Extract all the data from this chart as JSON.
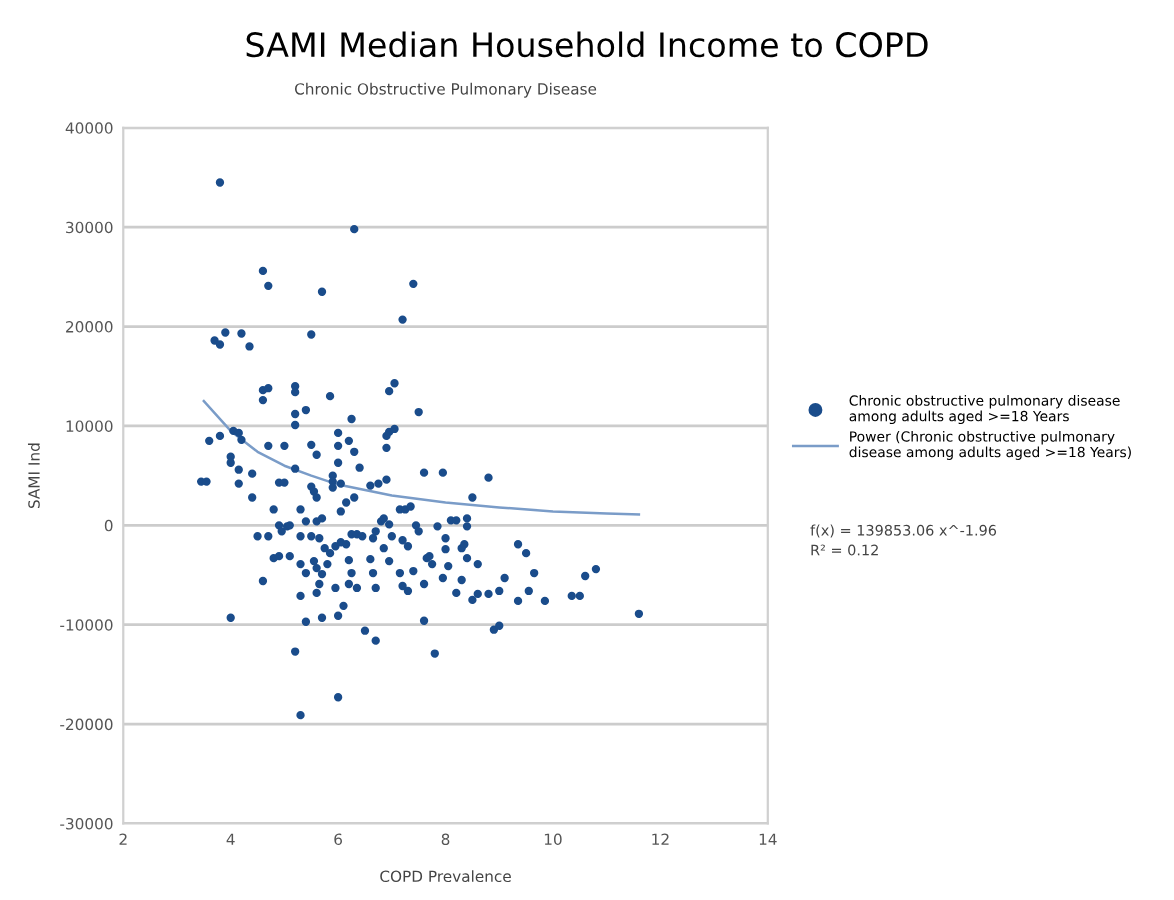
{
  "chart_data": {
    "type": "scatter",
    "title": "SAMI Median Household Income to COPD",
    "subtitle": "Chronic Obstructive Pulmonary Disease",
    "xlabel": "COPD Prevalence",
    "ylabel": "SAMI Ind",
    "xlim": [
      2,
      14
    ],
    "xticks": [
      2,
      4,
      6,
      8,
      10,
      12,
      14
    ],
    "ylim": [
      -30000,
      40000
    ],
    "yticks": [
      -30000,
      -20000,
      -10000,
      0,
      10000,
      20000,
      30000,
      40000
    ],
    "grid": "y",
    "legend": "right",
    "marker": "circle",
    "annotations": [
      "f(x) = 139853.06 x^-1.96",
      "R² = 0.12"
    ],
    "series": [
      {
        "name": "Chronic obstructive pulmonary disease among adults aged >=18 Years",
        "color": "#1a4c8b",
        "x": [
          3.8,
          6.3,
          4.6,
          4.7,
          5.7,
          7.4,
          7.2,
          5.5,
          3.7,
          3.8,
          3.9,
          4.2,
          4.35,
          4.6,
          4.6,
          4.7,
          5.2,
          5.2,
          5.85,
          6.95,
          7.05,
          5.2,
          5.4,
          5.2,
          6.25,
          7.5,
          4.05,
          4.15,
          4.2,
          3.8,
          3.6,
          6.0,
          6.95,
          7.05,
          6.9,
          6.2,
          4.7,
          5.0,
          5.5,
          5.6,
          6.0,
          6.3,
          6.9,
          4.0,
          4.0,
          4.15,
          4.4,
          5.2,
          6.0,
          6.4,
          5.9,
          7.6,
          7.95,
          3.45,
          3.55,
          4.15,
          4.4,
          4.9,
          5.0,
          5.5,
          5.55,
          5.6,
          5.9,
          5.9,
          6.05,
          6.3,
          6.6,
          6.75,
          6.9,
          7.15,
          8.5,
          8.8,
          4.0,
          4.6,
          4.5,
          4.7,
          4.8,
          4.9,
          4.95,
          5.05,
          5.1,
          4.8,
          4.9,
          5.1,
          5.3,
          5.4,
          5.3,
          5.5,
          5.3,
          5.4,
          5.55,
          5.3,
          5.4,
          5.2,
          5.3,
          6.0,
          5.6,
          5.7,
          5.65,
          5.75,
          5.85,
          5.95,
          6.05,
          6.15,
          5.6,
          5.7,
          5.8,
          5.65,
          5.6,
          5.95,
          5.7,
          6.0,
          6.1,
          6.05,
          6.15,
          6.25,
          6.35,
          6.45,
          6.2,
          6.25,
          6.2,
          6.35,
          6.5,
          6.7,
          6.6,
          6.65,
          6.7,
          6.65,
          6.7,
          6.8,
          6.85,
          6.95,
          7.0,
          6.85,
          6.95,
          7.15,
          7.2,
          7.3,
          7.25,
          7.35,
          7.2,
          7.3,
          7.4,
          7.45,
          7.5,
          7.65,
          7.7,
          7.75,
          7.6,
          7.6,
          7.8,
          7.85,
          7.95,
          8.0,
          8.0,
          8.05,
          8.1,
          8.2,
          8.3,
          8.35,
          8.2,
          8.3,
          8.4,
          8.4,
          8.4,
          8.5,
          8.6,
          8.6,
          8.8,
          8.9,
          9.0,
          9.1,
          9.0,
          9.35,
          9.35,
          9.5,
          9.55,
          9.65,
          9.85,
          10.35,
          10.5,
          10.6,
          10.8,
          11.6
        ],
        "values": [
          34500,
          29800,
          25600,
          24100,
          23500,
          24300,
          20700,
          19200,
          18600,
          18200,
          19400,
          19300,
          18000,
          12600,
          13600,
          13800,
          14000,
          13400,
          13000,
          13500,
          14300,
          11200,
          11600,
          10100,
          10700,
          11400,
          9500,
          9300,
          8600,
          9000,
          8500,
          9300,
          9400,
          9700,
          9000,
          8500,
          8000,
          8000,
          8100,
          7100,
          8000,
          7400,
          7800,
          6900,
          6300,
          5600,
          5200,
          5700,
          6300,
          5800,
          5000,
          5300,
          5300,
          4400,
          4400,
          4200,
          2800,
          4300,
          4300,
          3900,
          3400,
          2800,
          4400,
          3800,
          4200,
          2800,
          4000,
          4200,
          4600,
          1600,
          2800,
          4800,
          -9300,
          -5600,
          -1100,
          -1100,
          1600,
          0,
          -600,
          -100,
          0,
          -3300,
          -3100,
          -3100,
          1600,
          400,
          -1100,
          -1100,
          -3900,
          -4800,
          -3600,
          -7100,
          -9700,
          -12700,
          -19100,
          -17300,
          400,
          700,
          -1300,
          -2300,
          -2800,
          -2100,
          -1700,
          -1900,
          -4300,
          -4900,
          -3900,
          -5900,
          -6800,
          -6300,
          -9300,
          -9100,
          -8100,
          1400,
          2300,
          -900,
          -900,
          -1100,
          -3500,
          -4800,
          -5900,
          -6300,
          -10600,
          -11600,
          -3400,
          -4800,
          -6300,
          -1300,
          -600,
          400,
          700,
          100,
          -1100,
          -2300,
          -3600,
          -4800,
          -6100,
          -6600,
          1600,
          1900,
          -1500,
          -2100,
          -4600,
          0,
          -600,
          -3300,
          -3100,
          -3900,
          -5900,
          -9600,
          -12900,
          -100,
          -5300,
          -1300,
          -2400,
          -4100,
          500,
          500,
          -2300,
          -1900,
          -6800,
          -5500,
          700,
          -100,
          -3300,
          -7500,
          -6900,
          -3900,
          -6900,
          -10500,
          -10100,
          -5300,
          -6600,
          -1900,
          -7600,
          -2800,
          -6600,
          -4800,
          -7600,
          -7100,
          -7100,
          -5100,
          -4400,
          -8900
        ]
      },
      {
        "name": "Power (Chronic obstructive pulmonary disease among adults aged >=18 Years)",
        "type": "line",
        "color": "#7a9cc8",
        "marker": "none",
        "x": [
          3.5,
          4,
          4.5,
          5,
          5.5,
          6,
          7,
          8,
          9,
          10,
          11,
          11.6
        ],
        "values": [
          12500,
          9500,
          7400,
          6000,
          5000,
          4100,
          3000,
          2300,
          1800,
          1400,
          1200,
          1100
        ]
      }
    ]
  }
}
